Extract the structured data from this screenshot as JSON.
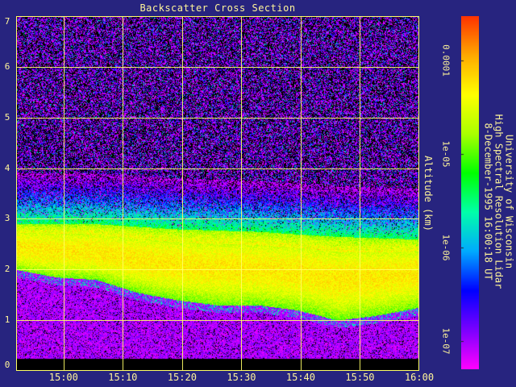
{
  "chart_data": {
    "type": "heatmap",
    "title": "Backscatter Cross Section",
    "ylabel": "Altitude (km)",
    "xlabel": "",
    "x_ticks": [
      "15:00",
      "15:10",
      "15:20",
      "15:30",
      "15:40",
      "15:50",
      "16:00"
    ],
    "x_range": [
      "14:52",
      "16:00"
    ],
    "y_ticks": [
      "0",
      "1",
      "2",
      "3",
      "4",
      "5",
      "6",
      "7"
    ],
    "ylim": [
      0,
      7
    ],
    "grid": true,
    "colorbar": {
      "scale": "log",
      "range": [
        5e-08,
        0.0003
      ],
      "tick_labels": [
        "0.0001",
        "1e-05",
        "1e-06",
        "1e-07"
      ],
      "colors": [
        "#ff00ff",
        "#7a00ff",
        "#0000ff",
        "#00aaff",
        "#00ffaa",
        "#00ff00",
        "#aaff00",
        "#ffff00",
        "#ffaa00",
        "#ff3300"
      ]
    },
    "layer": {
      "top_km": [
        [
          0.0,
          2.9
        ],
        [
          0.2,
          2.9
        ],
        [
          0.4,
          2.8
        ],
        [
          0.6,
          2.75
        ],
        [
          0.8,
          2.65
        ],
        [
          1.0,
          2.6
        ]
      ],
      "bottom_km": [
        [
          0.0,
          2.0
        ],
        [
          0.1,
          1.85
        ],
        [
          0.2,
          1.8
        ],
        [
          0.3,
          1.55
        ],
        [
          0.4,
          1.4
        ],
        [
          0.5,
          1.3
        ],
        [
          0.6,
          1.3
        ],
        [
          0.7,
          1.2
        ],
        [
          0.8,
          1.0
        ],
        [
          0.9,
          1.1
        ],
        [
          1.0,
          1.25
        ]
      ]
    },
    "colors": {
      "background": "#27247f",
      "text": "#fff59a",
      "grid": "#ffff66"
    }
  },
  "credit": {
    "line1": "University of Wisconsin",
    "line2": "High Spectral Resolution Lidar",
    "line3": "8-December-1995 16:00:18 UT"
  }
}
